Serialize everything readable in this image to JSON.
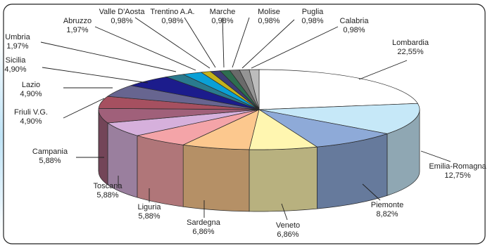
{
  "chart_data": {
    "type": "pie",
    "style": "3d-exploded-perspective",
    "title": "",
    "slices": [
      {
        "name": "Lombardia",
        "value_label": "22,55%",
        "value": 22.55,
        "color": "#ffffff"
      },
      {
        "name": "Emilia-Romagna",
        "value_label": "12,75%",
        "value": 12.75,
        "color": "#c6e8f8"
      },
      {
        "name": "Piemonte",
        "value_label": "8,82%",
        "value": 8.82,
        "color": "#8eaad8"
      },
      {
        "name": "Veneto",
        "value_label": "6,86%",
        "value": 6.86,
        "color": "#fff6b0"
      },
      {
        "name": "Sardegna",
        "value_label": "6,86%",
        "value": 6.86,
        "color": "#fcc88e"
      },
      {
        "name": "Liguria",
        "value_label": "5,88%",
        "value": 5.88,
        "color": "#f4a4a8"
      },
      {
        "name": "Toscana",
        "value_label": "5,88%",
        "value": 5.88,
        "color": "#d6b0dc"
      },
      {
        "name": "Campania",
        "value_label": "5,88%",
        "value": 5.88,
        "color": "#a0607a"
      },
      {
        "name": "Friuli V.G.",
        "value_label": "4,90%",
        "value": 4.9,
        "color": "#a65060"
      },
      {
        "name": "Lazio",
        "value_label": "4,90%",
        "value": 4.9,
        "color": "#676590"
      },
      {
        "name": "Sicilia",
        "value_label": "4,90%",
        "value": 4.9,
        "color": "#1c1c8c"
      },
      {
        "name": "Umbria",
        "value_label": "1,97%",
        "value": 1.97,
        "color": "#2a7a8e"
      },
      {
        "name": "Abruzzo",
        "value_label": "1,97%",
        "value": 1.97,
        "color": "#0aa0d6"
      },
      {
        "name": "Valle D'Aosta",
        "value_label": "0,98%",
        "value": 0.98,
        "color": "#c4b21a"
      },
      {
        "name": "Trentino A.A.",
        "value_label": "0,98%",
        "value": 0.98,
        "color": "#3c3c78"
      },
      {
        "name": "Marche",
        "value_label": "0,98%",
        "value": 0.98,
        "color": "#2e6e50"
      },
      {
        "name": "Molise",
        "value_label": "0,98%",
        "value": 0.98,
        "color": "#6a6a6a"
      },
      {
        "name": "Puglia",
        "value_label": "0,98%",
        "value": 0.98,
        "color": "#949494"
      },
      {
        "name": "Calabria",
        "value_label": "0,98%",
        "value": 0.98,
        "color": "#bcbcbc"
      }
    ]
  }
}
